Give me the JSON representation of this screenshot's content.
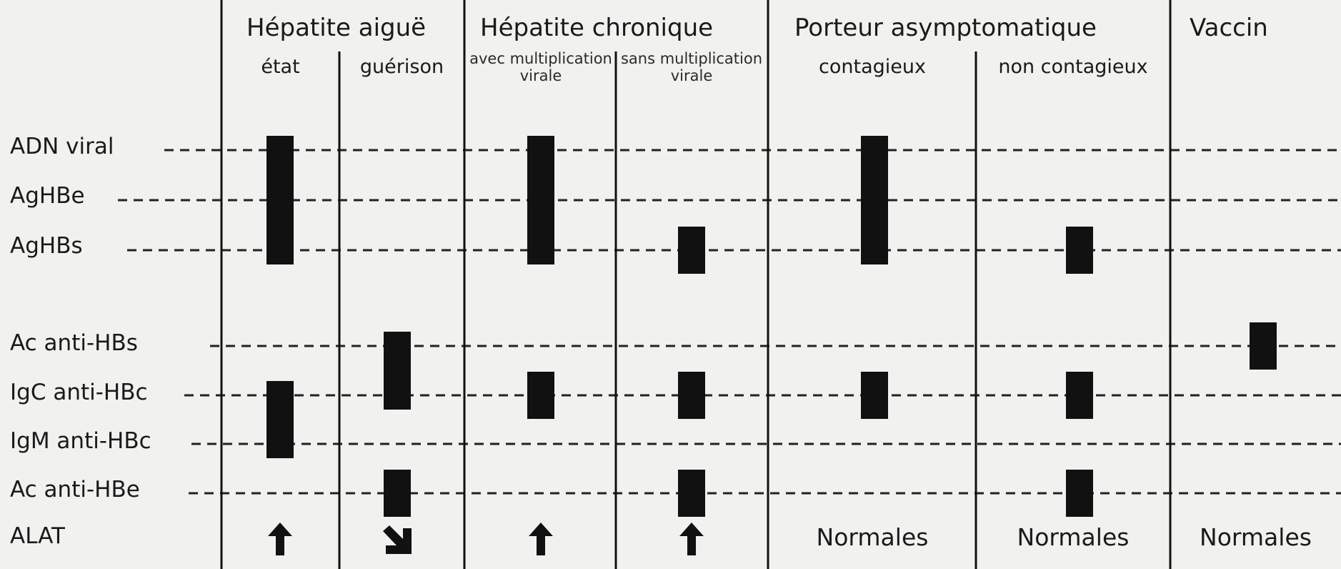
{
  "groups": [
    {
      "title": "Hépatite aiguë"
    },
    {
      "title": "Hépatite chronique"
    },
    {
      "title": "Porteur asymptomatique"
    },
    {
      "title": "Vaccin"
    }
  ],
  "columns": [
    {
      "label": "état"
    },
    {
      "label": "guérison"
    },
    {
      "label": "avec multiplication virale"
    },
    {
      "label": "sans multiplication virale"
    },
    {
      "label": "contagieux"
    },
    {
      "label": "non contagieux"
    },
    {
      "label": ""
    }
  ],
  "rows": [
    "ADN viral",
    "AgHBe",
    "AgHBs",
    "Ac anti-HBs",
    "IgC anti-HBc",
    "IgM anti-HBc",
    "Ac anti-HBe",
    "ALAT"
  ],
  "markers": [
    {
      "column": 0,
      "from_row": 0,
      "to_row": 2
    },
    {
      "column": 0,
      "from_row": 4,
      "to_row": 5
    },
    {
      "column": 1,
      "from_row": 3,
      "to_row": 4
    },
    {
      "column": 1,
      "from_row": 6,
      "to_row": 6
    },
    {
      "column": 2,
      "from_row": 0,
      "to_row": 2
    },
    {
      "column": 2,
      "from_row": 4,
      "to_row": 4
    },
    {
      "column": 3,
      "from_row": 2,
      "to_row": 2
    },
    {
      "column": 3,
      "from_row": 4,
      "to_row": 4
    },
    {
      "column": 3,
      "from_row": 6,
      "to_row": 6
    },
    {
      "column": 4,
      "from_row": 0,
      "to_row": 2
    },
    {
      "column": 4,
      "from_row": 4,
      "to_row": 4
    },
    {
      "column": 5,
      "from_row": 2,
      "to_row": 2
    },
    {
      "column": 5,
      "from_row": 4,
      "to_row": 4
    },
    {
      "column": 5,
      "from_row": 6,
      "to_row": 6
    },
    {
      "column": 6,
      "from_row": 3,
      "to_row": 3
    }
  ],
  "alat": [
    {
      "column": 0,
      "symbol": "arrow-up-icon"
    },
    {
      "column": 1,
      "symbol": "arrow-down-right-icon"
    },
    {
      "column": 2,
      "symbol": "arrow-up-icon"
    },
    {
      "column": 3,
      "symbol": "arrow-up-icon"
    },
    {
      "column": 4,
      "text": "Normales"
    },
    {
      "column": 5,
      "text": "Normales"
    },
    {
      "column": 6,
      "text": "Normales"
    }
  ]
}
